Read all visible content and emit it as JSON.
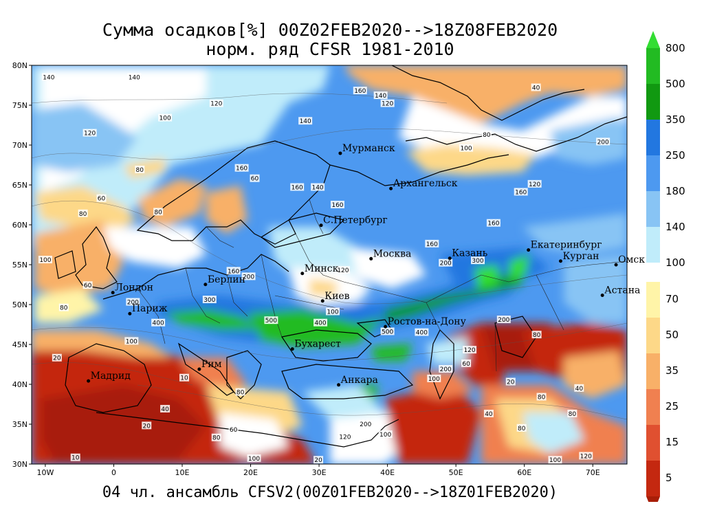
{
  "title": {
    "line1": "Сумма осадков[%] 00Z02FEB2020-->18Z08FEB2020",
    "line2": "норм. ряд CFSR 1981-2010"
  },
  "footer": "04 чл. ансамбль CFSV2(00Z01FEB2020-->18Z01FEB2020)",
  "map": {
    "lon_range": [
      -12,
      75
    ],
    "lat_range": [
      30,
      80
    ],
    "lat_ticks": [
      "80N",
      "75N",
      "70N",
      "65N",
      "60N",
      "55N",
      "50N",
      "45N",
      "40N",
      "35N",
      "30N"
    ],
    "lon_ticks": [
      "10W",
      "0",
      "10E",
      "20E",
      "30E",
      "40E",
      "50E",
      "60E",
      "70E"
    ],
    "cities": [
      {
        "name": "Мурманск",
        "lon": 33.1,
        "lat": 68.97
      },
      {
        "name": "Архангельск",
        "lon": 40.5,
        "lat": 64.55
      },
      {
        "name": "С.Петербург",
        "lon": 30.3,
        "lat": 59.94
      },
      {
        "name": "Москва",
        "lon": 37.6,
        "lat": 55.75
      },
      {
        "name": "Казань",
        "lon": 49.1,
        "lat": 55.8
      },
      {
        "name": "Екатеринбург",
        "lon": 60.6,
        "lat": 56.84
      },
      {
        "name": "Курган",
        "lon": 65.3,
        "lat": 55.45
      },
      {
        "name": "Омск",
        "lon": 73.4,
        "lat": 54.99
      },
      {
        "name": "Астана",
        "lon": 71.4,
        "lat": 51.16
      },
      {
        "name": "Минск",
        "lon": 27.56,
        "lat": 53.9
      },
      {
        "name": "Берлин",
        "lon": 13.4,
        "lat": 52.52
      },
      {
        "name": "Лондон",
        "lon": -0.13,
        "lat": 51.5
      },
      {
        "name": "Париж",
        "lon": 2.35,
        "lat": 48.86
      },
      {
        "name": "Киев",
        "lon": 30.52,
        "lat": 50.45
      },
      {
        "name": "Ростов-на-Дону",
        "lon": 39.7,
        "lat": 47.23
      },
      {
        "name": "Бухарест",
        "lon": 26.1,
        "lat": 44.43
      },
      {
        "name": "Рим",
        "lon": 12.5,
        "lat": 41.9
      },
      {
        "name": "Мадрид",
        "lon": -3.7,
        "lat": 40.42
      },
      {
        "name": "Анкара",
        "lon": 32.86,
        "lat": 39.93
      }
    ],
    "contour_labels": [
      {
        "text": "140",
        "lon": -9.5,
        "lat": 78.5
      },
      {
        "text": "140",
        "lon": 3,
        "lat": 78.5
      },
      {
        "text": "140",
        "lon": 39,
        "lat": 76.2
      },
      {
        "text": "160",
        "lon": 36,
        "lat": 76.8
      },
      {
        "text": "120",
        "lon": 40,
        "lat": 75.2
      },
      {
        "text": "120",
        "lon": 15,
        "lat": 75.2
      },
      {
        "text": "100",
        "lon": 7.5,
        "lat": 73.4
      },
      {
        "text": "140",
        "lon": 28,
        "lat": 73
      },
      {
        "text": "120",
        "lon": -3.5,
        "lat": 71.5
      },
      {
        "text": "80",
        "lon": 3.8,
        "lat": 66.9
      },
      {
        "text": "160",
        "lon": 18.7,
        "lat": 67.1
      },
      {
        "text": "60",
        "lon": 20.6,
        "lat": 65.8
      },
      {
        "text": "60",
        "lon": -1.8,
        "lat": 63.3
      },
      {
        "text": "80",
        "lon": -4.5,
        "lat": 61.4
      },
      {
        "text": "160",
        "lon": 32.7,
        "lat": 62.5
      },
      {
        "text": "160",
        "lon": 26.8,
        "lat": 64.7
      },
      {
        "text": "140",
        "lon": 29.8,
        "lat": 64.7
      },
      {
        "text": "80",
        "lon": 6.5,
        "lat": 61.6
      },
      {
        "text": "160",
        "lon": 59.5,
        "lat": 64.1
      },
      {
        "text": "120",
        "lon": 61.5,
        "lat": 65.1
      },
      {
        "text": "160",
        "lon": 55.5,
        "lat": 60.2
      },
      {
        "text": "160",
        "lon": 46.5,
        "lat": 57.6
      },
      {
        "text": "200",
        "lon": 48.5,
        "lat": 55.2
      },
      {
        "text": "300",
        "lon": 53.2,
        "lat": 55.5
      },
      {
        "text": "100",
        "lon": -10,
        "lat": 55.6
      },
      {
        "text": "60",
        "lon": -3.8,
        "lat": 52.4
      },
      {
        "text": "200",
        "lon": 2.8,
        "lat": 50.3
      },
      {
        "text": "80",
        "lon": -7.3,
        "lat": 49.6
      },
      {
        "text": "300",
        "lon": 14,
        "lat": 50.6
      },
      {
        "text": "160",
        "lon": 17.5,
        "lat": 54.2
      },
      {
        "text": "200",
        "lon": 19.7,
        "lat": 53.5
      },
      {
        "text": "120",
        "lon": 33.5,
        "lat": 54.3
      },
      {
        "text": "100",
        "lon": 32,
        "lat": 49.1
      },
      {
        "text": "400",
        "lon": 6.5,
        "lat": 47.7
      },
      {
        "text": "400",
        "lon": 30.2,
        "lat": 47.7
      },
      {
        "text": "500",
        "lon": 23,
        "lat": 48
      },
      {
        "text": "500",
        "lon": 40,
        "lat": 46.6
      },
      {
        "text": "400",
        "lon": 45,
        "lat": 46.5
      },
      {
        "text": "200",
        "lon": 57,
        "lat": 48.1
      },
      {
        "text": "100",
        "lon": 2.6,
        "lat": 45.4
      },
      {
        "text": "20",
        "lon": -8.3,
        "lat": 43.3
      },
      {
        "text": "10",
        "lon": 10.3,
        "lat": 40.8
      },
      {
        "text": "40",
        "lon": 7.5,
        "lat": 36.9
      },
      {
        "text": "20",
        "lon": 4.8,
        "lat": 34.8
      },
      {
        "text": "80",
        "lon": 18.5,
        "lat": 39
      },
      {
        "text": "60",
        "lon": 17.5,
        "lat": 34.3
      },
      {
        "text": "80",
        "lon": 15,
        "lat": 33.3
      },
      {
        "text": "10",
        "lon": -5.6,
        "lat": 30.8
      },
      {
        "text": "100",
        "lon": 20.5,
        "lat": 30.7
      },
      {
        "text": "20",
        "lon": 29.9,
        "lat": 30.5
      },
      {
        "text": "200",
        "lon": 36.8,
        "lat": 35
      },
      {
        "text": "120",
        "lon": 33.8,
        "lat": 33.4
      },
      {
        "text": "100",
        "lon": 39.7,
        "lat": 33.7
      },
      {
        "text": "200",
        "lon": 48.5,
        "lat": 41.9
      },
      {
        "text": "100",
        "lon": 46.8,
        "lat": 40.7
      },
      {
        "text": "20",
        "lon": 58,
        "lat": 40.3
      },
      {
        "text": "40",
        "lon": 54.8,
        "lat": 36.3
      },
      {
        "text": "80",
        "lon": 62.5,
        "lat": 38.4
      },
      {
        "text": "40",
        "lon": 68,
        "lat": 39.5
      },
      {
        "text": "80",
        "lon": 67,
        "lat": 36.3
      },
      {
        "text": "80",
        "lon": 59.6,
        "lat": 34.5
      },
      {
        "text": "100",
        "lon": 64.5,
        "lat": 30.5
      },
      {
        "text": "120",
        "lon": 69,
        "lat": 31
      },
      {
        "text": "200",
        "lon": 71.5,
        "lat": 70.4
      },
      {
        "text": "40",
        "lon": 61.7,
        "lat": 77.2
      },
      {
        "text": "80",
        "lon": 54.5,
        "lat": 71.3
      },
      {
        "text": "100",
        "lon": 51.5,
        "lat": 69.6
      },
      {
        "text": "120",
        "lon": 52,
        "lat": 44.3
      },
      {
        "text": "60",
        "lon": 51.5,
        "lat": 42.6
      },
      {
        "text": "80",
        "lon": 61.8,
        "lat": 46.2
      }
    ]
  },
  "colorbar": {
    "upper_labels": [
      "800",
      "500",
      "350",
      "250",
      "180",
      "140",
      "100"
    ],
    "lower_labels": [
      "70",
      "50",
      "35",
      "25",
      "15",
      "5"
    ],
    "upper_colors": [
      "#33dd33",
      "#22bb22",
      "#119911",
      "#2277e0",
      "#4d99f0",
      "#88c4f4",
      "#c0ecfa"
    ],
    "lower_colors": [
      "#fff4a8",
      "#fdd888",
      "#f8b068",
      "#f08050",
      "#e05030",
      "#c42810",
      "#a81e08"
    ]
  }
}
